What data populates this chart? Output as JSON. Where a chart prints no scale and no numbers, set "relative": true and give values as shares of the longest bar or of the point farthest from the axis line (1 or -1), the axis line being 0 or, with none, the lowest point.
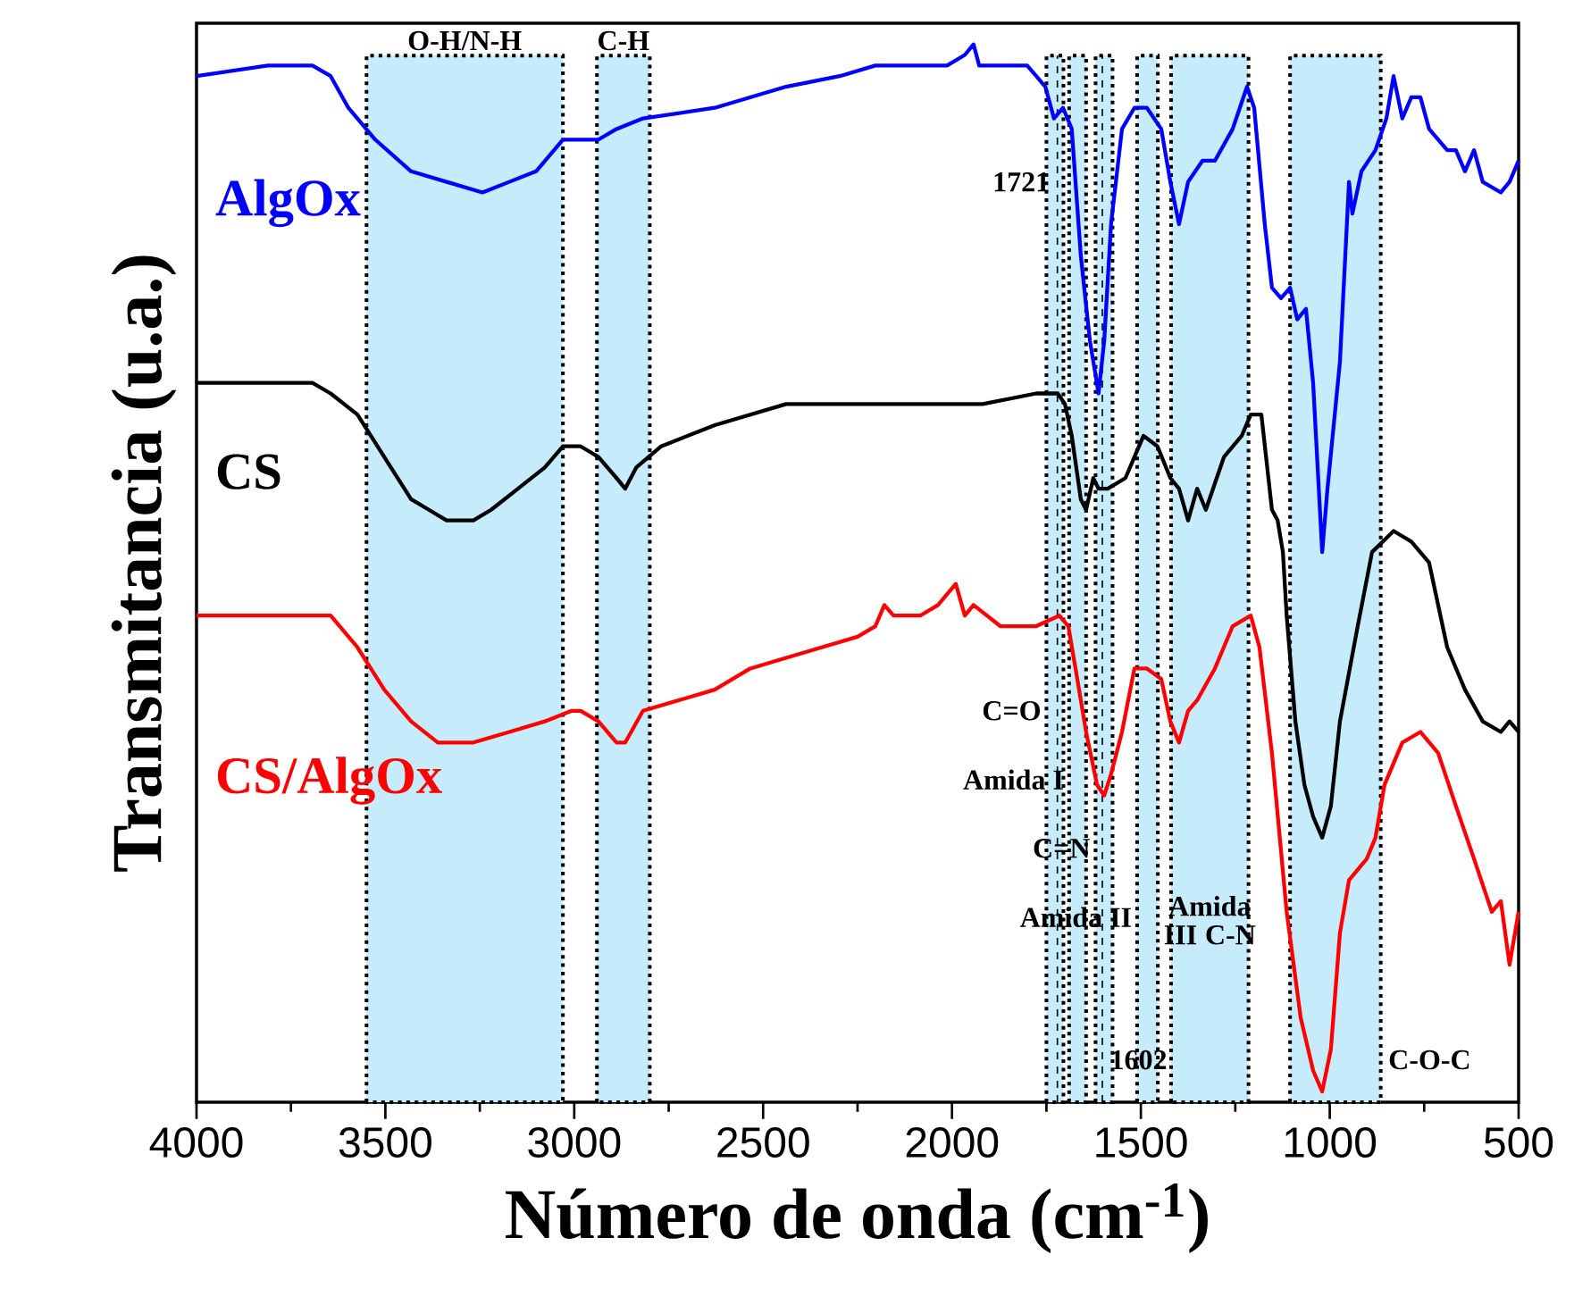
{
  "chart_data": {
    "type": "line",
    "xlabel": "Número de onda (cm$^{-1}$)",
    "ylabel": "Transmitancia (u.a.)",
    "relative": true,
    "xlim": [
      4000,
      500
    ],
    "xticks": [
      4000,
      3500,
      3000,
      2500,
      2000,
      1500,
      1000,
      500
    ],
    "tick_labels": "x",
    "marker": "none",
    "line_style": "solid",
    "series": [
      {
        "name": "AlgOx",
        "color": "#0000ff",
        "x": [
          4000,
          3811,
          3693,
          3645,
          3598,
          3527,
          3432,
          3338,
          3243,
          3172,
          3101,
          3030,
          2983,
          2936,
          2888,
          2818,
          2628,
          2439,
          2297,
          2203,
          2155,
          2061,
          2013,
          1966,
          1943,
          1928,
          1872,
          1801,
          1777,
          1753,
          1730,
          1706,
          1683,
          1659,
          1635,
          1612,
          1597,
          1579,
          1550,
          1517,
          1484,
          1446,
          1422,
          1399,
          1375,
          1337,
          1304,
          1257,
          1219,
          1200,
          1172,
          1153,
          1129,
          1105,
          1086,
          1063,
          1044,
          1020,
          1006,
          973,
          949,
          940,
          916,
          879,
          850,
          831,
          808,
          784,
          760,
          737,
          689,
          666,
          642,
          618,
          595,
          547,
          524,
          500
        ],
        "values": [
          0.97,
          0.98,
          0.98,
          0.97,
          0.94,
          0.91,
          0.88,
          0.87,
          0.86,
          0.87,
          0.88,
          0.91,
          0.91,
          0.91,
          0.92,
          0.93,
          0.94,
          0.96,
          0.97,
          0.98,
          0.98,
          0.98,
          0.98,
          0.99,
          1.0,
          0.98,
          0.98,
          0.98,
          0.97,
          0.96,
          0.93,
          0.94,
          0.92,
          0.8,
          0.72,
          0.67,
          0.72,
          0.83,
          0.92,
          0.94,
          0.94,
          0.92,
          0.87,
          0.83,
          0.87,
          0.89,
          0.89,
          0.92,
          0.96,
          0.94,
          0.83,
          0.77,
          0.76,
          0.77,
          0.74,
          0.75,
          0.68,
          0.52,
          0.58,
          0.7,
          0.87,
          0.84,
          0.88,
          0.9,
          0.93,
          0.97,
          0.93,
          0.95,
          0.95,
          0.92,
          0.9,
          0.9,
          0.88,
          0.9,
          0.87,
          0.86,
          0.87,
          0.89
        ]
      },
      {
        "name": "CS",
        "color": "#000000",
        "x": [
          4000,
          3811,
          3693,
          3645,
          3574,
          3503,
          3432,
          3385,
          3338,
          3300,
          3267,
          3220,
          3149,
          3078,
          3030,
          2983,
          2936,
          2888,
          2865,
          2836,
          2770,
          2628,
          2439,
          2155,
          1919,
          1777,
          1720,
          1701,
          1683,
          1659,
          1645,
          1626,
          1612,
          1588,
          1541,
          1493,
          1456,
          1422,
          1399,
          1375,
          1351,
          1328,
          1280,
          1233,
          1209,
          1181,
          1153,
          1138,
          1124,
          1114,
          1091,
          1067,
          1044,
          1020,
          997,
          973,
          926,
          888,
          831,
          784,
          737,
          689,
          642,
          595,
          547,
          524,
          500
        ],
        "values": [
          0.68,
          0.68,
          0.68,
          0.67,
          0.65,
          0.61,
          0.57,
          0.56,
          0.55,
          0.55,
          0.55,
          0.56,
          0.58,
          0.6,
          0.62,
          0.62,
          0.61,
          0.59,
          0.58,
          0.6,
          0.62,
          0.64,
          0.66,
          0.66,
          0.66,
          0.67,
          0.67,
          0.66,
          0.63,
          0.57,
          0.56,
          0.59,
          0.58,
          0.58,
          0.59,
          0.63,
          0.62,
          0.59,
          0.58,
          0.55,
          0.58,
          0.56,
          0.61,
          0.63,
          0.65,
          0.65,
          0.56,
          0.55,
          0.52,
          0.46,
          0.36,
          0.3,
          0.27,
          0.25,
          0.28,
          0.36,
          0.45,
          0.52,
          0.54,
          0.53,
          0.51,
          0.43,
          0.39,
          0.36,
          0.35,
          0.36,
          0.35
        ]
      },
      {
        "name": "CS/AlgOx",
        "color": "#ff0000",
        "x": [
          4000,
          3811,
          3693,
          3645,
          3574,
          3503,
          3432,
          3361,
          3314,
          3267,
          3172,
          3078,
          3007,
          2983,
          2936,
          2888,
          2865,
          2818,
          2723,
          2628,
          2534,
          2439,
          2345,
          2250,
          2203,
          2179,
          2155,
          2132,
          2084,
          2037,
          1990,
          1966,
          1943,
          1872,
          1777,
          1716,
          1692,
          1673,
          1645,
          1616,
          1597,
          1579,
          1550,
          1517,
          1484,
          1446,
          1422,
          1399,
          1375,
          1351,
          1304,
          1257,
          1209,
          1186,
          1153,
          1114,
          1077,
          1044,
          1020,
          997,
          973,
          949,
          902,
          879,
          855,
          808,
          760,
          713,
          666,
          618,
          571,
          547,
          524,
          500
        ],
        "values": [
          0.46,
          0.46,
          0.46,
          0.46,
          0.43,
          0.39,
          0.36,
          0.34,
          0.34,
          0.34,
          0.35,
          0.36,
          0.37,
          0.37,
          0.36,
          0.34,
          0.34,
          0.37,
          0.38,
          0.39,
          0.41,
          0.42,
          0.43,
          0.44,
          0.45,
          0.47,
          0.46,
          0.46,
          0.46,
          0.47,
          0.49,
          0.46,
          0.47,
          0.45,
          0.45,
          0.46,
          0.45,
          0.41,
          0.35,
          0.3,
          0.29,
          0.31,
          0.35,
          0.41,
          0.41,
          0.4,
          0.36,
          0.34,
          0.37,
          0.38,
          0.41,
          0.45,
          0.46,
          0.43,
          0.33,
          0.18,
          0.08,
          0.03,
          0.01,
          0.05,
          0.16,
          0.21,
          0.23,
          0.25,
          0.3,
          0.34,
          0.35,
          0.33,
          0.28,
          0.23,
          0.18,
          0.19,
          0.13,
          0.18
        ]
      }
    ],
    "bands": [
      {
        "axis": "x",
        "from": 3550,
        "to": 3030,
        "label": "O-H/N-H",
        "color": "#c6ebfa"
      },
      {
        "axis": "x",
        "from": 2940,
        "to": 2800,
        "label": "C-H",
        "color": "#c6ebfa"
      },
      {
        "axis": "x",
        "from": 1750,
        "to": 1705,
        "label": "C=O",
        "color": "#c6ebfa"
      },
      {
        "axis": "x",
        "from": 1690,
        "to": 1645,
        "label": "Amida I",
        "color": "#c6ebfa"
      },
      {
        "axis": "x",
        "from": 1620,
        "to": 1575,
        "label": "C=N",
        "color": "#c6ebfa"
      },
      {
        "axis": "x",
        "from": 1510,
        "to": 1455,
        "label": "Amida II",
        "color": "#c6ebfa"
      },
      {
        "axis": "x",
        "from": 1420,
        "to": 1215,
        "label": "Amida III C-N",
        "color": "#c6ebfa"
      },
      {
        "axis": "x",
        "from": 1105,
        "to": 865,
        "label": "C-O-C",
        "color": "#c6ebfa"
      }
    ],
    "ref_lines": [
      {
        "axis": "x",
        "value": 1721,
        "label": "1721",
        "line_style": "dashed",
        "color": "#000000"
      },
      {
        "axis": "x",
        "value": 1602,
        "label": "1602",
        "line_style": "dashed",
        "color": "#000000"
      }
    ]
  }
}
